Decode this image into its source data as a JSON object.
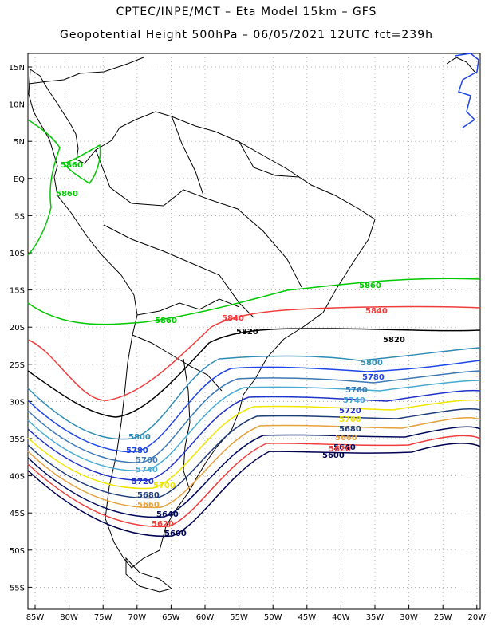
{
  "header": {
    "line1": "CPTEC/INPE/MCT –  Eta Model 15km – GFS",
    "line2": "Geopotential Height 500hPa – 06/05/2021 12UTC fct=239h"
  },
  "map": {
    "lat_labels": [
      "15N",
      "10N",
      "5N",
      "EQ",
      "5S",
      "10S",
      "15S",
      "20S",
      "25S",
      "30S",
      "35S",
      "40S",
      "45S",
      "50S",
      "55S"
    ],
    "lon_labels": [
      "85W",
      "80W",
      "75W",
      "70W",
      "65W",
      "60W",
      "55W",
      "50W",
      "45W",
      "40W",
      "35W",
      "30W",
      "25W",
      "20W"
    ],
    "contours": [
      {
        "level": "5860",
        "color": "#00c800"
      },
      {
        "level": "5840",
        "color": "#f03c3c"
      },
      {
        "level": "5820",
        "color": "#000000"
      },
      {
        "level": "5800",
        "color": "#2d8cb4"
      },
      {
        "level": "5780",
        "color": "#1e46e6"
      },
      {
        "level": "5760",
        "color": "#3c78b4"
      },
      {
        "level": "5740",
        "color": "#46aad2"
      },
      {
        "level": "5720",
        "color": "#1e32c8"
      },
      {
        "level": "5700",
        "color": "#f0e600"
      },
      {
        "level": "5680",
        "color": "#1e3c78"
      },
      {
        "level": "5660",
        "color": "#e6a03c"
      },
      {
        "level": "5640",
        "color": "#000a5a"
      },
      {
        "level": "5620",
        "color": "#f03c3c"
      },
      {
        "level": "5600",
        "color": "#000050"
      }
    ]
  }
}
